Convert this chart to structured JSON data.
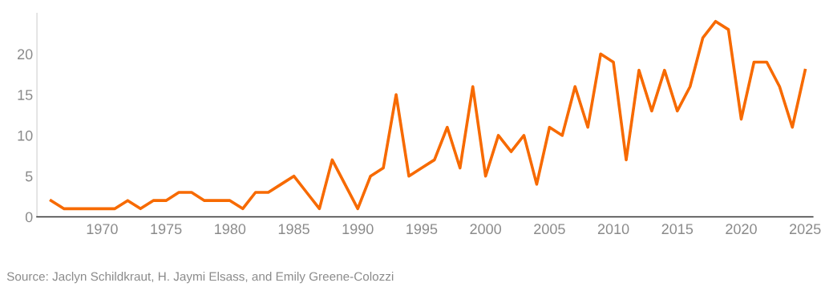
{
  "chart_data": {
    "type": "line",
    "x": [
      1966,
      1967,
      1968,
      1969,
      1970,
      1971,
      1972,
      1973,
      1974,
      1975,
      1976,
      1977,
      1978,
      1979,
      1980,
      1981,
      1982,
      1983,
      1984,
      1985,
      1986,
      1987,
      1988,
      1989,
      1990,
      1991,
      1992,
      1993,
      1994,
      1995,
      1996,
      1997,
      1998,
      1999,
      2000,
      2001,
      2002,
      2003,
      2004,
      2005,
      2006,
      2007,
      2008,
      2009,
      2010,
      2011,
      2012,
      2013,
      2014,
      2015,
      2016,
      2017,
      2018,
      2019,
      2020,
      2021,
      2022,
      2023,
      2024,
      2025
    ],
    "series": [
      {
        "color": "#f76a00",
        "values": [
          2,
          1,
          1,
          1,
          1,
          1,
          2,
          1,
          2,
          2,
          3,
          3,
          2,
          2,
          2,
          1,
          3,
          3,
          4,
          5,
          3,
          1,
          7,
          4,
          1,
          5,
          6,
          15,
          5,
          6,
          7,
          11,
          6,
          16,
          5,
          10,
          8,
          10,
          4,
          11,
          10,
          16,
          11,
          20,
          19,
          7,
          18,
          13,
          18,
          13,
          16,
          22,
          24,
          23,
          12,
          19,
          19,
          16,
          11,
          18
        ]
      }
    ],
    "xlim": [
      1964.9,
      2025.6
    ],
    "xticks": [
      1970,
      1975,
      1980,
      1985,
      1990,
      1995,
      2000,
      2005,
      2010,
      2015,
      2020,
      2025
    ],
    "ylim": [
      0,
      25
    ],
    "yticks": [
      0,
      5,
      10,
      15,
      20
    ],
    "grid": false,
    "legend": false,
    "marker": "none",
    "line_style": "solid",
    "annotations": [
      "Source: Jaclyn Schildkraut, H. Jaymi Elsass, and Emily Greene-Colozzi"
    ]
  }
}
